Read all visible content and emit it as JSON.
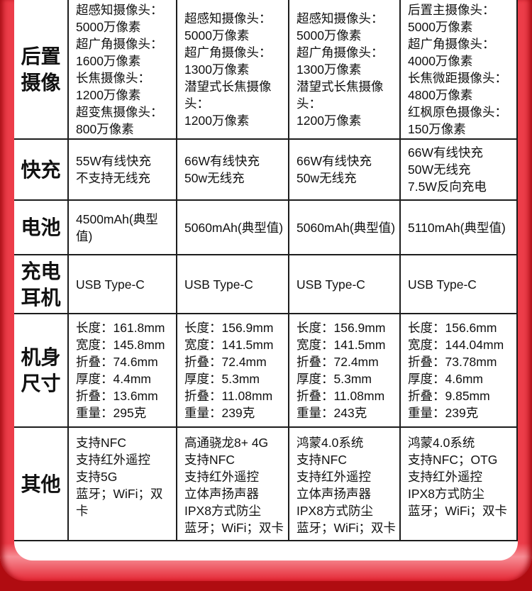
{
  "colors": {
    "frame_red": "#ec3d49",
    "frame_dark_red": "#b00c11",
    "card_bg": "#ffffff",
    "grid_line": "#1d1d1d",
    "text": "#111111"
  },
  "table": {
    "rows": [
      {
        "header": [
          "后置",
          "摄像"
        ],
        "cells": [
          [
            "超感知摄像头：",
            "5000万像素",
            "超广角摄像头：",
            "1600万像素",
            "长焦摄像头：",
            "1200万像素",
            "超变焦摄像头：",
            "800万像素"
          ],
          [
            "超感知摄像头：",
            "5000万像素",
            "超广角摄像头：",
            "1300万像素",
            "潜望式长焦摄像头：",
            "1200万像素"
          ],
          [
            "超感知摄像头：",
            "5000万像素",
            "超广角摄像头：",
            "1300万像素",
            "潜望式长焦摄像头：",
            "1200万像素"
          ],
          [
            "后置主摄像头：",
            "5000万像素",
            "超广角摄像头：",
            "4000万像素",
            "长焦微距摄像头：",
            "4800万像素",
            "红枫原色摄像头：",
            "150万像素"
          ]
        ]
      },
      {
        "header": [
          "快充"
        ],
        "cells": [
          [
            "55W有线快充",
            "不支持无线充"
          ],
          [
            "66W有线快充",
            "50w无线充"
          ],
          [
            "66W有线快充",
            "50w无线充"
          ],
          [
            "66W有线快充",
            "50W无线充",
            "7.5W反向充电"
          ]
        ]
      },
      {
        "header": [
          "电池"
        ],
        "cells": [
          [
            "4500mAh(典型值)"
          ],
          [
            "5060mAh(典型值)"
          ],
          [
            "5060mAh(典型值)"
          ],
          [
            "5110mAh(典型值)"
          ]
        ]
      },
      {
        "header": [
          "充电",
          "耳机"
        ],
        "cells": [
          [
            "USB Type-C"
          ],
          [
            "USB Type-C"
          ],
          [
            "USB Type-C"
          ],
          [
            "USB Type-C"
          ]
        ]
      },
      {
        "header": [
          "机身",
          "尺寸"
        ],
        "cells": [
          [
            "长度：161.8mm",
            "宽度：145.8mm",
            "折叠：74.6mm",
            "厚度：4.4mm",
            "折叠：13.6mm",
            "重量：295克"
          ],
          [
            "长度：156.9mm",
            "宽度：141.5mm",
            "折叠：72.4mm",
            "厚度：5.3mm",
            "折叠：11.08mm",
            "重量：239克"
          ],
          [
            "长度：156.9mm",
            "宽度：141.5mm",
            "折叠：72.4mm",
            "厚度：5.3mm",
            "折叠：11.08mm",
            "重量：243克"
          ],
          [
            "长度：156.6mm",
            "宽度：144.04mm",
            "折叠：73.78mm",
            "厚度：4.6mm",
            "折叠：9.85mm",
            "重量：239克"
          ]
        ]
      },
      {
        "header": [
          "其他"
        ],
        "cells": [
          [
            "支持NFC",
            "支持红外遥控",
            "支持5G",
            "蓝牙；WiFi；双卡"
          ],
          [
            "高通骁龙8+ 4G",
            "支持NFC",
            "支持红外遥控",
            "立体声扬声器",
            "IPX8方式防尘",
            "蓝牙；WiFi；双卡"
          ],
          [
            "鸿蒙4.0系统",
            "支持NFC",
            "支持红外遥控",
            "立体声扬声器",
            "IPX8方式防尘",
            "蓝牙；WiFi；双卡"
          ],
          [
            "鸿蒙4.0系统",
            "支持NFC；OTG",
            "支持红外遥控",
            "IPX8方式防尘",
            "蓝牙；WiFi；双卡"
          ]
        ]
      }
    ]
  }
}
